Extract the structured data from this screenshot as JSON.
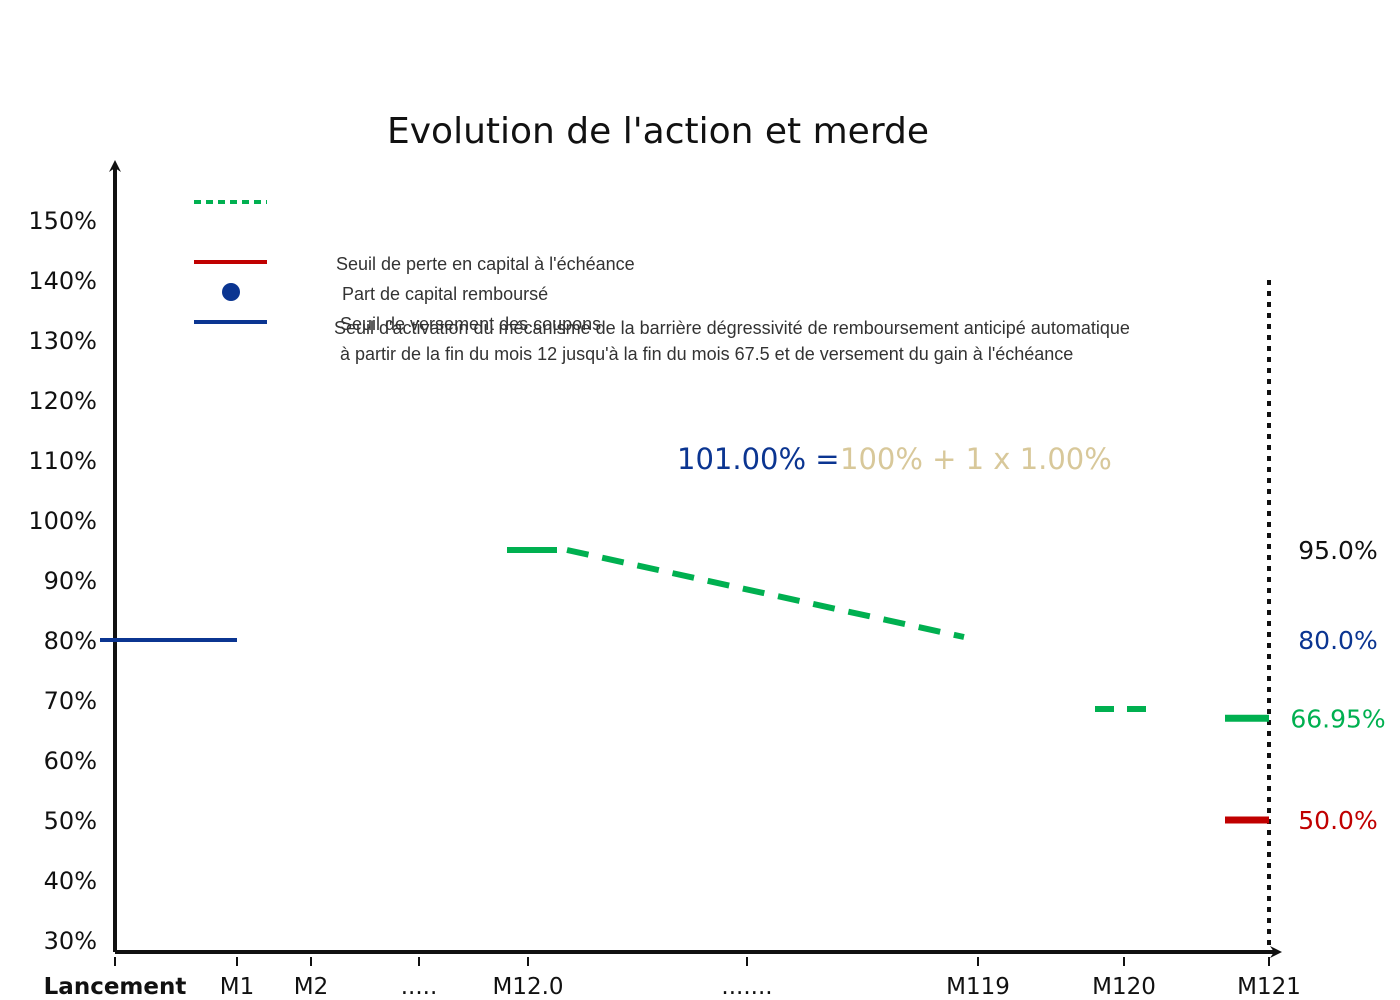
{
  "chart_data": {
    "type": "line",
    "title": "Evolution de l'action et merde",
    "colors": {
      "axis": "#111111",
      "green": "#00b050",
      "red": "#c00000",
      "blue": "#0b3591",
      "gold": "#d8c89a",
      "black": "#111111"
    },
    "y_axis": {
      "ylim": [
        30,
        150
      ],
      "ticks": [
        {
          "value": 150,
          "label": "150%"
        },
        {
          "value": 140,
          "label": "140%"
        },
        {
          "value": 130,
          "label": "130%"
        },
        {
          "value": 120,
          "label": "120%"
        },
        {
          "value": 110,
          "label": "110%"
        },
        {
          "value": 100,
          "label": "100%"
        },
        {
          "value": 90,
          "label": "90%"
        },
        {
          "value": 80,
          "label": "80%"
        },
        {
          "value": 70,
          "label": "70%"
        },
        {
          "value": 60,
          "label": "60%"
        },
        {
          "value": 50,
          "label": "50%"
        },
        {
          "value": 40,
          "label": "40%"
        },
        {
          "value": 30,
          "label": "30%"
        }
      ]
    },
    "x_axis": {
      "ticks": [
        {
          "label": "Lancement",
          "bold": true
        },
        {
          "label": "M1"
        },
        {
          "label": "M2"
        },
        {
          "label": "....."
        },
        {
          "label": "M12.0"
        },
        {
          "label": "......."
        },
        {
          "label": "M119"
        },
        {
          "label": "M120"
        },
        {
          "label": "M121"
        }
      ]
    },
    "legend": [
      {
        "style": "dotted",
        "color": "green",
        "text": "Seuil d'activation du mécanisme de la barrière dégressivité de remboursement anticipé automatique",
        "text2": "à partir de la fin du mois 12 jusqu'à la fin du mois 67.5 et de versement du gain à l'échéance"
      },
      {
        "style": "solid",
        "color": "red",
        "text": "Seuil de perte en capital à l'échéance"
      },
      {
        "style": "dot",
        "color": "blue",
        "text": "Part de capital remboursé"
      },
      {
        "style": "solid",
        "color": "blue",
        "text": "Seuil de versement des coupons"
      }
    ],
    "series": [
      {
        "color": "blue",
        "style": "solid",
        "points": [
          {
            "x": "Lancement",
            "y": 80
          },
          {
            "x": "M1",
            "y": 80
          }
        ]
      },
      {
        "color": "green",
        "style": "dashed",
        "points": [
          {
            "x": "M12.0",
            "y": 95
          },
          {
            "x": "M119",
            "y": 80.5
          }
        ]
      },
      {
        "color": "green",
        "style": "dashed",
        "points": [
          {
            "x": "M120",
            "y": 68.5
          }
        ]
      },
      {
        "color": "green",
        "style": "solid",
        "points": [
          {
            "x": "M121",
            "y": 66.95
          }
        ]
      },
      {
        "color": "red",
        "style": "solid",
        "points": [
          {
            "x": "M121",
            "y": 50
          }
        ]
      }
    ],
    "formula": {
      "left": "101.00% =",
      "right": "100% + 1 x 1.00%"
    },
    "right_labels": [
      {
        "value": 95,
        "label": "95.0%",
        "color": "black"
      },
      {
        "value": 80,
        "label": "80.0%",
        "color": "blue"
      },
      {
        "value": 66.95,
        "label": "66.95%",
        "color": "green"
      },
      {
        "value": 50,
        "label": "50.0%",
        "color": "red"
      }
    ],
    "maturity_line": {
      "x": "M121",
      "style": "dotted"
    }
  }
}
